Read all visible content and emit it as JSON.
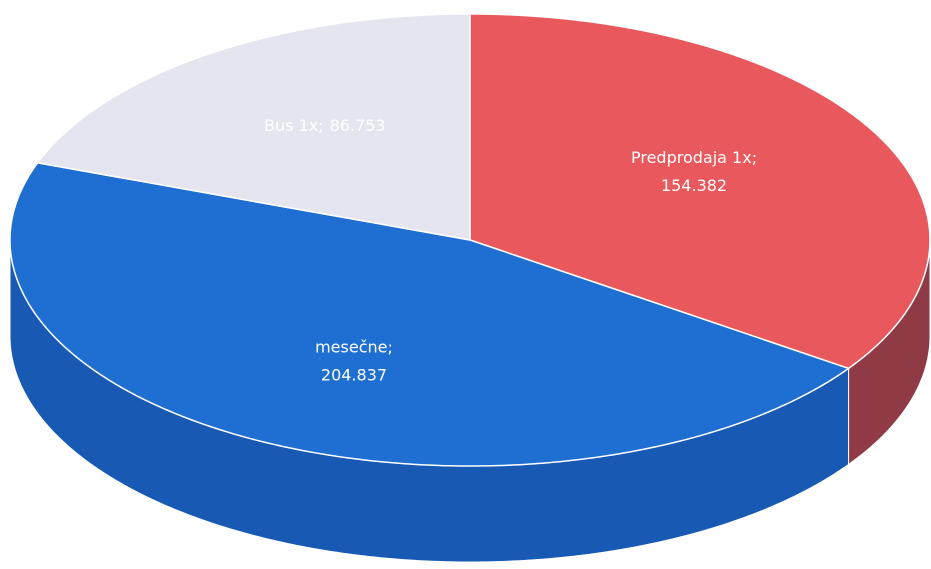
{
  "chart_data": {
    "type": "pie3d",
    "categories": [
      "Predprodaja 1x",
      "mesečne",
      "Bus 1x"
    ],
    "values": [
      154382,
      204837,
      86753
    ],
    "value_labels": [
      "154.382",
      "204.837",
      "86.753"
    ],
    "label_separator": ";",
    "colors": [
      "#e8585c",
      "#1f6fd2",
      "#e4e5ee"
    ],
    "side_colors": [
      "#8f3a44",
      "#1859b3",
      "#b8b9c4"
    ]
  }
}
